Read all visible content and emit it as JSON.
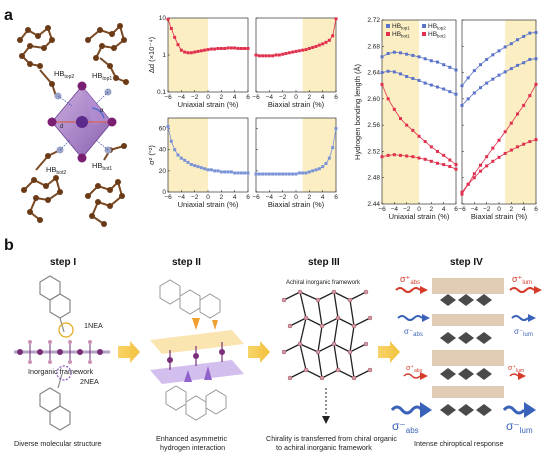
{
  "panel_a": {
    "label": "a",
    "structure_labels": {
      "hb_top2": "HB",
      "hb_top2_sub": "top2",
      "hb_top1": "HB",
      "hb_top1_sub": "top1",
      "hb_bot2": "HB",
      "hb_bot2_sub": "bot2",
      "hb_bot1": "HB",
      "hb_bot1_sub": "bot1"
    },
    "colors": {
      "blue": "#5b74c9",
      "red": "#e0304e",
      "shade": "#fbeec3"
    }
  },
  "chart_data": [
    {
      "type": "line",
      "id": "delta-d-uniaxial",
      "xlabel": "Uniaxial strain (%)",
      "ylabel": "Δd (×10⁻⁴)",
      "ylim": [
        0.1,
        10
      ],
      "yscale": "log",
      "ytick_labels": [
        "0.1",
        "1",
        "10"
      ],
      "xtick_labels": [
        "−6",
        "−4",
        "−2",
        "0",
        "2",
        "4",
        "6"
      ],
      "shaded_x": [
        -6,
        0
      ],
      "series": [
        {
          "color": "#e0304e",
          "x": [
            -6,
            -5.5,
            -5,
            -4.5,
            -4,
            -3.5,
            -3,
            -2.5,
            -2,
            -1.5,
            -1,
            -0.5,
            0,
            0.5,
            1,
            1.5,
            2,
            2.5,
            3,
            3.5,
            4,
            4.5,
            5,
            5.5,
            6
          ],
          "y": [
            9.2,
            5.2,
            3.0,
            1.9,
            1.35,
            1.2,
            1.15,
            1.15,
            1.2,
            1.25,
            1.3,
            1.35,
            1.4,
            1.45,
            1.45,
            1.5,
            1.5,
            1.5,
            1.55,
            1.55,
            1.55,
            1.5,
            1.5,
            1.5,
            1.5
          ]
        }
      ]
    },
    {
      "type": "line",
      "id": "delta-d-biaxial",
      "xlabel": "Biaxial strain (%)",
      "ylabel": "",
      "ylim": [
        0.1,
        10
      ],
      "yscale": "log",
      "ytick_labels": [],
      "xtick_labels": [
        "−6",
        "−4",
        "−2",
        "0",
        "2",
        "4",
        "6"
      ],
      "shaded_x": [
        1,
        6
      ],
      "series": [
        {
          "color": "#e0304e",
          "x": [
            -6,
            -5.5,
            -5,
            -4.5,
            -4,
            -3.5,
            -3,
            -2.5,
            -2,
            -1.5,
            -1,
            -0.5,
            0,
            0.5,
            1,
            1.5,
            2,
            2.5,
            3,
            3.5,
            4,
            4.5,
            5,
            5.5,
            6
          ],
          "y": [
            1.0,
            0.95,
            0.95,
            0.95,
            0.95,
            0.95,
            1.0,
            1.0,
            1.05,
            1.1,
            1.15,
            1.2,
            1.25,
            1.3,
            1.35,
            1.4,
            1.5,
            1.6,
            1.7,
            1.85,
            2.0,
            2.2,
            2.5,
            3.3,
            9.5
          ]
        }
      ]
    },
    {
      "type": "line",
      "id": "sigma2-uniaxial",
      "xlabel": "Uniaxial strain (%)",
      "ylabel": "σ² (°²)",
      "ylim": [
        0,
        70
      ],
      "ytick_labels": [
        "0",
        "20",
        "40",
        "60"
      ],
      "yticks": [
        0,
        20,
        40,
        60
      ],
      "xtick_labels": [
        "−6",
        "−4",
        "−2",
        "0",
        "2",
        "4",
        "6"
      ],
      "shaded_x": [
        -6,
        0
      ],
      "series": [
        {
          "color": "#7a93d6",
          "x": [
            -6,
            -5.5,
            -5,
            -4.5,
            -4,
            -3.5,
            -3,
            -2.5,
            -2,
            -1.5,
            -1,
            -0.5,
            0,
            0.5,
            1,
            1.5,
            2,
            2.5,
            3,
            3.5,
            4,
            4.5,
            5,
            5.5,
            6
          ],
          "y": [
            62,
            48,
            40,
            35,
            32,
            30,
            28,
            26,
            25,
            24,
            23,
            22,
            21,
            21,
            20,
            20,
            19,
            19,
            19,
            19,
            18,
            18,
            18,
            18,
            18
          ]
        }
      ]
    },
    {
      "type": "line",
      "id": "sigma2-biaxial",
      "xlabel": "Biaxial strain (%)",
      "ylabel": "",
      "ylim": [
        0,
        70
      ],
      "ytick_labels": [],
      "yticks": [
        0,
        20,
        40,
        60
      ],
      "xtick_labels": [
        "−6",
        "−4",
        "−2",
        "0",
        "2",
        "4",
        "6"
      ],
      "shaded_x": [
        1,
        6
      ],
      "series": [
        {
          "color": "#7a93d6",
          "x": [
            -6,
            -5.5,
            -5,
            -4.5,
            -4,
            -3.5,
            -3,
            -2.5,
            -2,
            -1.5,
            -1,
            -0.5,
            0,
            0.5,
            1,
            1.5,
            2,
            2.5,
            3,
            3.5,
            4,
            4.5,
            5,
            5.5,
            6
          ],
          "y": [
            17,
            17,
            17,
            17,
            17,
            17,
            17,
            17,
            17,
            17,
            17,
            17,
            17,
            18,
            18,
            18,
            19,
            20,
            21,
            22,
            24,
            27,
            32,
            42,
            60
          ]
        }
      ]
    },
    {
      "type": "line",
      "id": "hb-uniaxial",
      "xlabel": "Uniaxial strain (%)",
      "ylabel": "Hydrogen bonding length (Å)",
      "ylim": [
        2.44,
        2.72
      ],
      "ytick_labels": [
        "2.44",
        "2.48",
        "2.52",
        "2.56",
        "2.60",
        "2.64",
        "2.68",
        "2.72"
      ],
      "yticks": [
        2.44,
        2.48,
        2.52,
        2.56,
        2.6,
        2.64,
        2.68,
        2.72
      ],
      "xtick_labels": [
        "−6",
        "−4",
        "−2",
        "0",
        "2",
        "4",
        "6"
      ],
      "shaded_x": [
        -6,
        0
      ],
      "legend": [
        {
          "name": "HB",
          "sub": "top1",
          "color": "#5b74c9"
        },
        {
          "name": "HB",
          "sub": "top2",
          "color": "#5b74c9"
        },
        {
          "name": "HB",
          "sub": "bot1",
          "color": "#e0304e"
        },
        {
          "name": "HB",
          "sub": "bot2",
          "color": "#e0304e"
        }
      ],
      "series": [
        {
          "color": "#5b74c9",
          "x": [
            -6,
            -5,
            -4,
            -3,
            -2,
            -1,
            0,
            1,
            2,
            3,
            4,
            5,
            6
          ],
          "y": [
            2.664,
            2.669,
            2.671,
            2.67,
            2.668,
            2.666,
            2.664,
            2.661,
            2.658,
            2.656,
            2.652,
            2.648,
            2.644
          ]
        },
        {
          "color": "#5b74c9",
          "x": [
            -6,
            -5,
            -4,
            -3,
            -2,
            -1,
            0,
            1,
            2,
            3,
            4,
            5,
            6
          ],
          "y": [
            2.64,
            2.642,
            2.641,
            2.638,
            2.634,
            2.631,
            2.628,
            2.624,
            2.621,
            2.618,
            2.615,
            2.611,
            2.607
          ]
        },
        {
          "color": "#e0304e",
          "x": [
            -6,
            -5,
            -4,
            -3,
            -2,
            -1,
            0,
            1,
            2,
            3,
            4,
            5,
            6
          ],
          "y": [
            2.622,
            2.6,
            2.584,
            2.57,
            2.56,
            2.552,
            2.543,
            2.535,
            2.527,
            2.52,
            2.514,
            2.507,
            2.5
          ]
        },
        {
          "color": "#e0304e",
          "x": [
            -6,
            -5,
            -4,
            -3,
            -2,
            -1,
            0,
            1,
            2,
            3,
            4,
            5,
            6
          ],
          "y": [
            2.512,
            2.514,
            2.515,
            2.514,
            2.513,
            2.512,
            2.51,
            2.508,
            2.505,
            2.502,
            2.5,
            2.497,
            2.493
          ]
        }
      ]
    },
    {
      "type": "line",
      "id": "hb-biaxial",
      "xlabel": "Biaxial strain (%)",
      "ylabel": "",
      "ylim": [
        2.44,
        2.72
      ],
      "ytick_labels": [],
      "yticks": [
        2.44,
        2.48,
        2.52,
        2.56,
        2.6,
        2.64,
        2.68,
        2.72
      ],
      "xtick_labels": [
        "−6",
        "−4",
        "−2",
        "0",
        "2",
        "4",
        "6"
      ],
      "shaded_x": [
        1,
        6
      ],
      "series": [
        {
          "color": "#5b74c9",
          "x": [
            -6,
            -5,
            -4,
            -3,
            -2,
            -1,
            0,
            1,
            2,
            3,
            4,
            5,
            6
          ],
          "y": [
            2.62,
            2.632,
            2.643,
            2.652,
            2.66,
            2.667,
            2.673,
            2.679,
            2.684,
            2.69,
            2.695,
            2.7,
            2.701
          ]
        },
        {
          "color": "#5b74c9",
          "x": [
            -6,
            -5,
            -4,
            -3,
            -2,
            -1,
            0,
            1,
            2,
            3,
            4,
            5,
            6
          ],
          "y": [
            2.59,
            2.6,
            2.609,
            2.617,
            2.624,
            2.63,
            2.636,
            2.641,
            2.646,
            2.651,
            2.655,
            2.66,
            2.661
          ]
        },
        {
          "color": "#e0304e",
          "x": [
            -6,
            -5,
            -4,
            -3,
            -2,
            -1,
            0,
            1,
            2,
            3,
            4,
            5,
            6
          ],
          "y": [
            2.455,
            2.47,
            2.486,
            2.499,
            2.512,
            2.525,
            2.537,
            2.55,
            2.563,
            2.577,
            2.59,
            2.605,
            2.622
          ]
        },
        {
          "color": "#e0304e",
          "x": [
            -6,
            -5,
            -4,
            -3,
            -2,
            -1,
            0,
            1,
            2,
            3,
            4,
            5,
            6
          ],
          "y": [
            2.458,
            2.47,
            2.48,
            2.49,
            2.498,
            2.505,
            2.511,
            2.517,
            2.522,
            2.527,
            2.531,
            2.535,
            2.538
          ]
        }
      ]
    }
  ],
  "panel_b": {
    "label": "b",
    "steps": [
      {
        "title": "step I",
        "caption": "Diverse molecular structure",
        "labels": [
          "1NEA",
          "Inorganic framework",
          "2NEA"
        ]
      },
      {
        "title": "step II",
        "caption1": "Enhanced asymmetric",
        "caption2": "hydrogen interaction"
      },
      {
        "title": "step III",
        "caption1": "Chirality is transferred from chiral organic",
        "caption2": "to achiral inorganic framework",
        "labels": [
          "Achiral inorganic framework"
        ]
      },
      {
        "title": "step IV",
        "caption": "Intense chiroptical response",
        "sigma_labels": [
          {
            "sym": "σ⁺",
            "sub": "abs"
          },
          {
            "sym": "σ⁺",
            "sub": "lum"
          },
          {
            "sym": "σ⁻",
            "sub": "abs"
          },
          {
            "sym": "σ⁻",
            "sub": "lum"
          },
          {
            "sym": "σ⁺",
            "sub": "abs"
          },
          {
            "sym": "σ⁺",
            "sub": "lum"
          },
          {
            "sym": "σ⁻",
            "sub": "abs"
          },
          {
            "sym": "σ⁻",
            "sub": "lum"
          }
        ]
      }
    ]
  }
}
